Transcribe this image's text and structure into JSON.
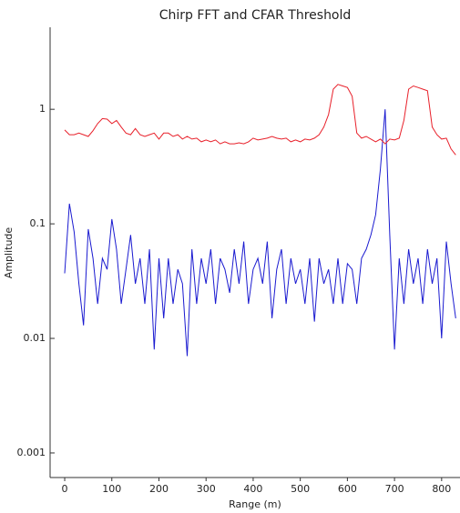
{
  "chart_data": {
    "type": "line",
    "title": "Chirp FFT and CFAR Threshold",
    "x_label": "Range (m)",
    "y_label": "Amplitude",
    "log_y": true,
    "x": [
      0,
      10,
      20,
      30,
      40,
      50,
      60,
      70,
      80,
      90,
      100,
      110,
      120,
      130,
      140,
      150,
      160,
      170,
      180,
      190,
      200,
      210,
      220,
      230,
      240,
      250,
      260,
      270,
      280,
      290,
      300,
      310,
      320,
      330,
      340,
      350,
      360,
      370,
      380,
      390,
      400,
      410,
      420,
      430,
      440,
      450,
      460,
      470,
      480,
      490,
      500,
      510,
      520,
      530,
      540,
      550,
      560,
      570,
      580,
      590,
      600,
      610,
      620,
      630,
      640,
      650,
      660,
      670,
      680,
      690,
      700,
      710,
      720,
      730,
      740,
      750,
      760,
      770,
      780,
      790,
      800,
      810,
      820,
      830
    ],
    "series": [
      {
        "color": "#1a1ad0",
        "values": [
          0.037,
          0.15,
          0.085,
          0.03,
          0.013,
          0.09,
          0.05,
          0.02,
          0.05,
          0.04,
          0.11,
          0.06,
          0.02,
          0.04,
          0.08,
          0.03,
          0.05,
          0.02,
          0.06,
          0.008,
          0.05,
          0.015,
          0.05,
          0.02,
          0.04,
          0.03,
          0.007,
          0.06,
          0.02,
          0.05,
          0.03,
          0.06,
          0.02,
          0.05,
          0.04,
          0.025,
          0.06,
          0.03,
          0.07,
          0.02,
          0.04,
          0.05,
          0.03,
          0.07,
          0.015,
          0.04,
          0.06,
          0.02,
          0.05,
          0.03,
          0.04,
          0.02,
          0.05,
          0.014,
          0.05,
          0.03,
          0.04,
          0.02,
          0.05,
          0.02,
          0.045,
          0.04,
          0.02,
          0.05,
          0.06,
          0.08,
          0.12,
          0.3,
          1.0,
          0.08,
          0.008,
          0.05,
          0.02,
          0.06,
          0.03,
          0.05,
          0.02,
          0.06,
          0.03,
          0.05,
          0.01,
          0.07,
          0.03,
          0.015
        ]
      },
      {
        "color": "#e8202a",
        "values": [
          0.66,
          0.6,
          0.6,
          0.62,
          0.6,
          0.58,
          0.65,
          0.75,
          0.83,
          0.82,
          0.75,
          0.8,
          0.7,
          0.62,
          0.6,
          0.68,
          0.6,
          0.58,
          0.6,
          0.62,
          0.55,
          0.62,
          0.62,
          0.58,
          0.6,
          0.55,
          0.58,
          0.55,
          0.56,
          0.52,
          0.54,
          0.52,
          0.54,
          0.5,
          0.52,
          0.5,
          0.5,
          0.51,
          0.5,
          0.52,
          0.56,
          0.54,
          0.55,
          0.56,
          0.58,
          0.56,
          0.55,
          0.56,
          0.52,
          0.54,
          0.52,
          0.55,
          0.54,
          0.56,
          0.6,
          0.7,
          0.9,
          1.5,
          1.65,
          1.6,
          1.55,
          1.3,
          0.62,
          0.56,
          0.58,
          0.55,
          0.52,
          0.55,
          0.5,
          0.55,
          0.54,
          0.56,
          0.8,
          1.5,
          1.6,
          1.55,
          1.5,
          1.45,
          0.7,
          0.6,
          0.55,
          0.56,
          0.45,
          0.4
        ]
      }
    ],
    "xlim": [
      -31,
      839
    ],
    "xticks": [
      0,
      100,
      200,
      300,
      400,
      500,
      600,
      700,
      800
    ],
    "ylim": [
      0.00061,
      5.2
    ],
    "yticks": [
      0.001,
      0.01,
      0.1,
      1
    ]
  }
}
